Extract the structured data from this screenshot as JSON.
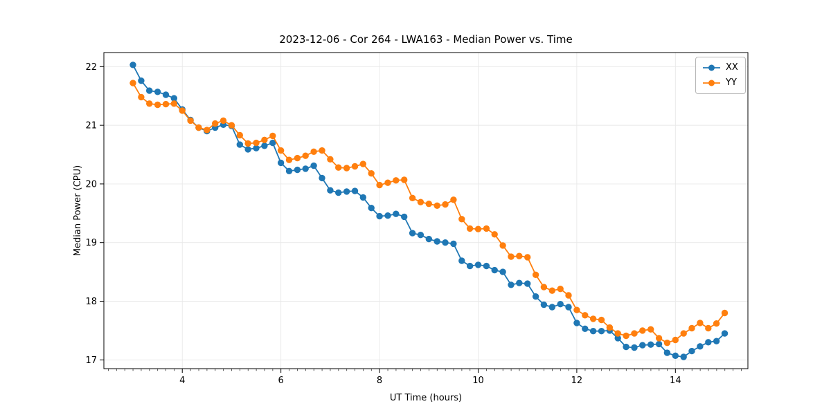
{
  "figure": {
    "title": "2023-12-06 - Cor 264 - LWA163 - Median Power vs. Time",
    "xlabel": "UT Time (hours)",
    "ylabel": "Median Power (CPU)",
    "background": "#ffffff"
  },
  "legend": {
    "position": "upper right",
    "entries": [
      {
        "label": "XX",
        "color": "#1f77b4"
      },
      {
        "label": "YY",
        "color": "#ff7f0e"
      }
    ]
  },
  "chart_data": {
    "type": "line",
    "title": "2023-12-06 - Cor 264 - LWA163 - Median Power vs. Time",
    "xlabel": "UT Time (hours)",
    "ylabel": "Median Power (CPU)",
    "xlim": [
      2.41,
      15.47
    ],
    "ylim": [
      16.85,
      22.24
    ],
    "x_ticks": [
      4,
      6,
      8,
      10,
      12,
      14
    ],
    "y_ticks": [
      17,
      18,
      19,
      20,
      21,
      22
    ],
    "x_minor_tick_step": 0.1667,
    "grid": true,
    "grid_color": "#e8e8e8",
    "legend_position": "upper right",
    "marker": "circle",
    "x": [
      3.0,
      3.167,
      3.333,
      3.5,
      3.667,
      3.833,
      4.0,
      4.167,
      4.333,
      4.5,
      4.667,
      4.833,
      5.0,
      5.167,
      5.333,
      5.5,
      5.667,
      5.833,
      6.0,
      6.167,
      6.333,
      6.5,
      6.667,
      6.833,
      7.0,
      7.167,
      7.333,
      7.5,
      7.667,
      7.833,
      8.0,
      8.167,
      8.333,
      8.5,
      8.667,
      8.833,
      9.0,
      9.167,
      9.333,
      9.5,
      9.667,
      9.833,
      10.0,
      10.167,
      10.333,
      10.5,
      10.667,
      10.833,
      11.0,
      11.167,
      11.333,
      11.5,
      11.667,
      11.833,
      12.0,
      12.167,
      12.333,
      12.5,
      12.667,
      12.833,
      13.0,
      13.167,
      13.333,
      13.5,
      13.667,
      13.833,
      14.0,
      14.167,
      14.333,
      14.5,
      14.667,
      14.833,
      15.0
    ],
    "series": [
      {
        "name": "XX",
        "color": "#1f77b4",
        "values": [
          22.03,
          21.76,
          21.59,
          21.57,
          21.52,
          21.46,
          21.27,
          21.09,
          20.96,
          20.9,
          20.96,
          21.01,
          20.99,
          20.67,
          20.59,
          20.61,
          20.65,
          20.7,
          20.36,
          20.22,
          20.24,
          20.26,
          20.31,
          20.1,
          19.89,
          19.85,
          19.87,
          19.88,
          19.77,
          19.59,
          19.45,
          19.46,
          19.49,
          19.44,
          19.16,
          19.13,
          19.06,
          19.02,
          19.0,
          18.98,
          18.69,
          18.6,
          18.62,
          18.6,
          18.53,
          18.5,
          18.28,
          18.31,
          18.3,
          18.08,
          17.94,
          17.9,
          17.95,
          17.9,
          17.63,
          17.53,
          17.49,
          17.49,
          17.5,
          17.37,
          17.22,
          17.21,
          17.25,
          17.26,
          17.27,
          17.12,
          17.07,
          17.05,
          17.15,
          17.23,
          17.3,
          17.32,
          17.45
        ]
      },
      {
        "name": "YY",
        "color": "#ff7f0e",
        "values": [
          21.72,
          21.48,
          21.37,
          21.35,
          21.36,
          21.37,
          21.25,
          21.08,
          20.96,
          20.92,
          21.03,
          21.08,
          21.0,
          20.83,
          20.69,
          20.7,
          20.75,
          20.82,
          20.57,
          20.41,
          20.44,
          20.48,
          20.55,
          20.57,
          20.42,
          20.28,
          20.27,
          20.3,
          20.34,
          20.18,
          19.98,
          20.02,
          20.06,
          20.07,
          19.76,
          19.69,
          19.66,
          19.63,
          19.65,
          19.73,
          19.4,
          19.24,
          19.23,
          19.24,
          19.14,
          18.95,
          18.76,
          18.77,
          18.75,
          18.45,
          18.24,
          18.18,
          18.21,
          18.1,
          17.85,
          17.76,
          17.7,
          17.68,
          17.55,
          17.45,
          17.41,
          17.45,
          17.5,
          17.52,
          17.37,
          17.29,
          17.34,
          17.45,
          17.54,
          17.63,
          17.54,
          17.62,
          17.8
        ]
      }
    ]
  }
}
